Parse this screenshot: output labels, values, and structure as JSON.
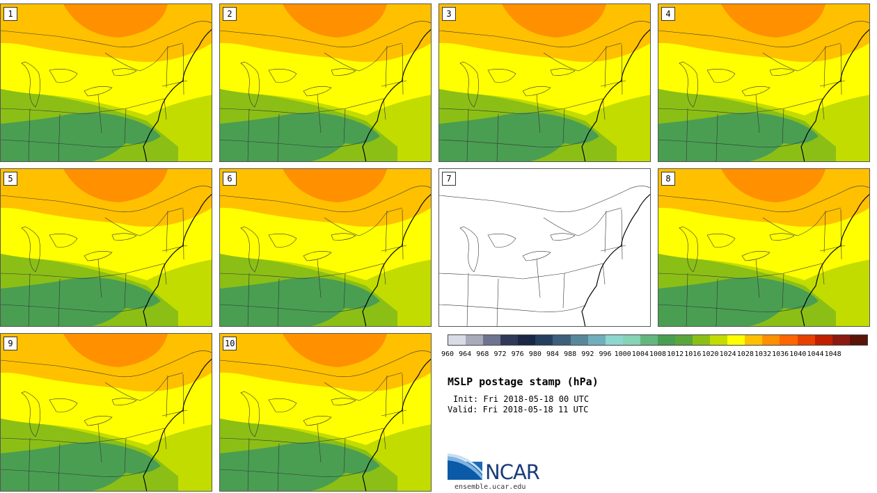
{
  "panels": [
    {
      "label": "1",
      "filled": true
    },
    {
      "label": "2",
      "filled": true
    },
    {
      "label": "3",
      "filled": true
    },
    {
      "label": "4",
      "filled": true
    },
    {
      "label": "5",
      "filled": true
    },
    {
      "label": "6",
      "filled": true
    },
    {
      "label": "7",
      "filled": false
    },
    {
      "label": "8",
      "filled": true
    },
    {
      "label": "9",
      "filled": true
    },
    {
      "label": "10",
      "filled": true
    }
  ],
  "colorbar": {
    "ticks": [
      "960",
      "964",
      "968",
      "972",
      "976",
      "980",
      "984",
      "988",
      "992",
      "996",
      "1000",
      "1004",
      "1008",
      "1012",
      "1016",
      "1020",
      "1024",
      "1028",
      "1032",
      "1036",
      "1040",
      "1044",
      "1048"
    ],
    "colors": [
      "#d9dce6",
      "#a9abbc",
      "#6e7390",
      "#2f3a58",
      "#1a2746",
      "#25405f",
      "#3d5f7c",
      "#58879a",
      "#72aebb",
      "#8ed6d0",
      "#86d3b6",
      "#64b680",
      "#4a9e52",
      "#5aa53c",
      "#8bbf16",
      "#c2dc00",
      "#ffff00",
      "#ffc000",
      "#ff9000",
      "#ff6500",
      "#e84000",
      "#c02000",
      "#8b1a10",
      "#5a1408"
    ]
  },
  "title": "MSLP postage stamp (hPa)",
  "init": "Init: Fri 2018-05-18 00 UTC",
  "valid": "Valid: Fri 2018-05-18 11 UTC",
  "logo": {
    "text": "NCAR",
    "url": "ensemble.ucar.edu"
  }
}
